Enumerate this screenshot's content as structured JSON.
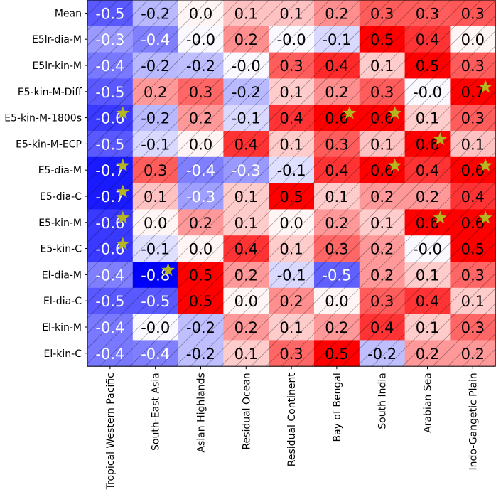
{
  "chart_data": {
    "type": "heatmap",
    "colormap": "bwr",
    "vmin": -0.8,
    "vmax": 0.5,
    "rows": [
      "Mean",
      "E5lr-dia-M",
      "E5lr-kin-M",
      "E5-kin-M-Diff",
      "E5-kin-M-1800s",
      "E5-kin-M-ECP",
      "E5-dia-M",
      "E5-dia-C",
      "E5-kin-M",
      "E5-kin-C",
      "El-dia-M",
      "El-dia-C",
      "El-kin-M",
      "El-kin-C"
    ],
    "columns": [
      "Tropical Western Pacific",
      "South-East Asia",
      "Asian Highlands",
      "Residual Ocean",
      "Residual Continent",
      "Bay of Bengal",
      "South India",
      "Arabian Sea",
      "Indo-Gangetic Plain"
    ],
    "values": [
      [
        -0.52,
        -0.22,
        0.02,
        0.12,
        0.12,
        0.22,
        0.32,
        0.32,
        0.33
      ],
      [
        -0.32,
        -0.4,
        -0.02,
        0.22,
        -0.02,
        -0.12,
        0.5,
        0.4,
        0.02
      ],
      [
        -0.42,
        -0.22,
        -0.2,
        -0.02,
        0.32,
        0.42,
        0.1,
        0.5,
        0.32
      ],
      [
        -0.52,
        0.2,
        0.3,
        -0.22,
        0.1,
        0.22,
        0.32,
        -0.02,
        0.7
      ],
      [
        -0.62,
        -0.22,
        0.2,
        -0.12,
        0.4,
        0.6,
        0.6,
        0.1,
        0.32
      ],
      [
        -0.52,
        -0.12,
        0.02,
        0.4,
        0.1,
        0.32,
        0.12,
        0.6,
        0.12
      ],
      [
        -0.72,
        0.32,
        -0.4,
        -0.32,
        -0.1,
        0.4,
        0.6,
        0.4,
        0.6
      ],
      [
        -0.72,
        0.12,
        -0.3,
        0.1,
        0.5,
        0.1,
        0.2,
        0.2,
        0.4
      ],
      [
        -0.62,
        0.02,
        0.2,
        0.1,
        0.02,
        0.2,
        0.1,
        0.6,
        0.6
      ],
      [
        -0.62,
        -0.1,
        0.02,
        0.4,
        0.1,
        0.3,
        0.2,
        -0.02,
        0.5
      ],
      [
        -0.4,
        -0.8,
        0.5,
        0.2,
        -0.12,
        -0.5,
        0.2,
        0.1,
        0.3
      ],
      [
        -0.52,
        -0.52,
        0.5,
        0.02,
        0.22,
        0.02,
        0.32,
        0.4,
        0.1
      ],
      [
        -0.42,
        -0.02,
        -0.2,
        0.2,
        0.1,
        0.2,
        0.4,
        0.1,
        0.3
      ],
      [
        -0.42,
        -0.4,
        -0.2,
        0.1,
        0.3,
        0.5,
        -0.2,
        0.2,
        0.2
      ]
    ],
    "labels": [
      [
        "-0.5",
        "-0.2",
        "0.0",
        "0.1",
        "0.1",
        "0.2",
        "0.3",
        "0.3",
        "0.3"
      ],
      [
        "-0.3",
        "-0.4",
        "-0.0",
        "0.2",
        "-0.0",
        "-0.1",
        "0.5",
        "0.4",
        "0.0"
      ],
      [
        "-0.4",
        "-0.2",
        "-0.2",
        "-0.0",
        "0.3",
        "0.4",
        "0.1",
        "0.5",
        "0.3"
      ],
      [
        "-0.5",
        "0.2",
        "0.3",
        "-0.2",
        "0.1",
        "0.2",
        "0.3",
        "-0.0",
        "0.7"
      ],
      [
        "-0.6",
        "-0.2",
        "0.2",
        "-0.1",
        "0.4",
        "0.6",
        "0.6",
        "0.1",
        "0.3"
      ],
      [
        "-0.5",
        "-0.1",
        "0.0",
        "0.4",
        "0.1",
        "0.3",
        "0.1",
        "0.6",
        "0.1"
      ],
      [
        "-0.7",
        "0.3",
        "-0.4",
        "-0.3",
        "-0.1",
        "0.4",
        "0.6",
        "0.4",
        "0.6"
      ],
      [
        "-0.7",
        "0.1",
        "-0.3",
        "0.1",
        "0.5",
        "0.1",
        "0.2",
        "0.2",
        "0.4"
      ],
      [
        "-0.6",
        "0.0",
        "0.2",
        "0.1",
        "0.0",
        "0.2",
        "0.1",
        "0.6",
        "0.6"
      ],
      [
        "-0.6",
        "-0.1",
        "0.0",
        "0.4",
        "0.1",
        "0.3",
        "0.2",
        "-0.0",
        "0.5"
      ],
      [
        "-0.4",
        "-0.8",
        "0.5",
        "0.2",
        "-0.1",
        "-0.5",
        "0.2",
        "0.1",
        "0.3"
      ],
      [
        "-0.5",
        "-0.5",
        "0.5",
        "0.0",
        "0.2",
        "0.0",
        "0.3",
        "0.4",
        "0.1"
      ],
      [
        "-0.4",
        "-0.0",
        "-0.2",
        "0.2",
        "0.1",
        "0.2",
        "0.4",
        "0.1",
        "0.3"
      ],
      [
        "-0.4",
        "-0.4",
        "-0.2",
        "0.1",
        "0.3",
        "0.5",
        "-0.2",
        "0.2",
        "0.2"
      ]
    ],
    "stars": [
      [
        3,
        8
      ],
      [
        4,
        0
      ],
      [
        4,
        5
      ],
      [
        4,
        6
      ],
      [
        5,
        7
      ],
      [
        6,
        0
      ],
      [
        6,
        6
      ],
      [
        6,
        8
      ],
      [
        7,
        0
      ],
      [
        8,
        0
      ],
      [
        8,
        7
      ],
      [
        8,
        8
      ],
      [
        9,
        0
      ],
      [
        10,
        1
      ]
    ],
    "hatch": "diagonal lines over all cells",
    "star_color": "#b5b520",
    "title": "",
    "xlabel": "",
    "ylabel": ""
  }
}
